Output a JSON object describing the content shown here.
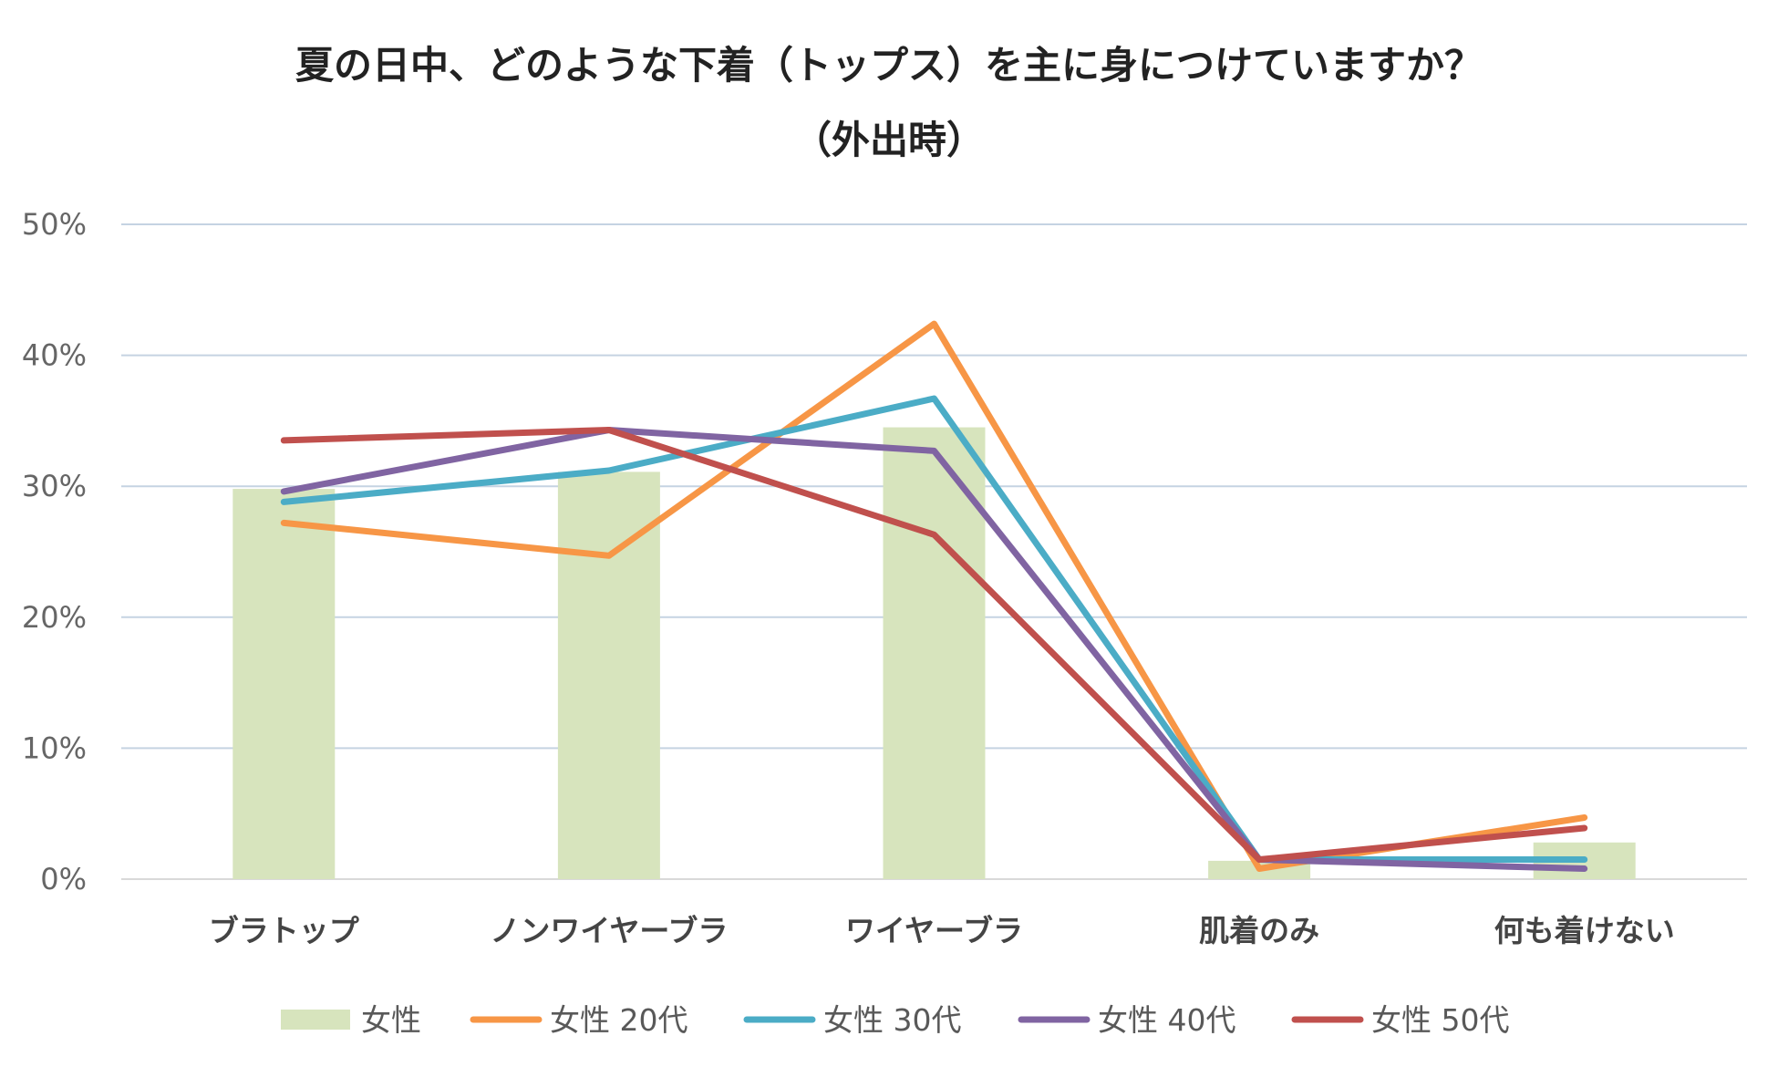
{
  "chart_data": {
    "type": "bar+line",
    "title": "夏の日中、どのような下着（トップス）を主に身につけていますか？",
    "subtitle": "（外出時）",
    "categories": [
      "ブラトップ",
      "ノンワイヤーブラ",
      "ワイヤーブラ",
      "肌着のみ",
      "何も着けない"
    ],
    "ylim": [
      0,
      50
    ],
    "y_ticks": [
      "0%",
      "10%",
      "20%",
      "30%",
      "40%",
      "50%"
    ],
    "y_tick_values": [
      0,
      10,
      20,
      30,
      40,
      50
    ],
    "grid": true,
    "legend_position": "bottom",
    "series": [
      {
        "name": "女性",
        "kind": "bar",
        "color": "#d7e4bd",
        "values": [
          29.8,
          31.1,
          34.5,
          1.4,
          2.8
        ]
      },
      {
        "name": "女性 20代",
        "kind": "line",
        "color": "#f79646",
        "values": [
          27.2,
          24.7,
          42.4,
          0.8,
          4.7
        ]
      },
      {
        "name": "女性 30代",
        "kind": "line",
        "color": "#4bacc6",
        "values": [
          28.8,
          31.2,
          36.7,
          1.5,
          1.5
        ]
      },
      {
        "name": "女性 40代",
        "kind": "line",
        "color": "#8064a2",
        "values": [
          29.6,
          34.3,
          32.7,
          1.5,
          0.8
        ]
      },
      {
        "name": "女性 50代",
        "kind": "line",
        "color": "#c0504d",
        "values": [
          33.5,
          34.3,
          26.3,
          1.5,
          3.9
        ]
      }
    ],
    "gridline_color": "#c5d3e2",
    "axis_color": "#d9d9d9"
  }
}
